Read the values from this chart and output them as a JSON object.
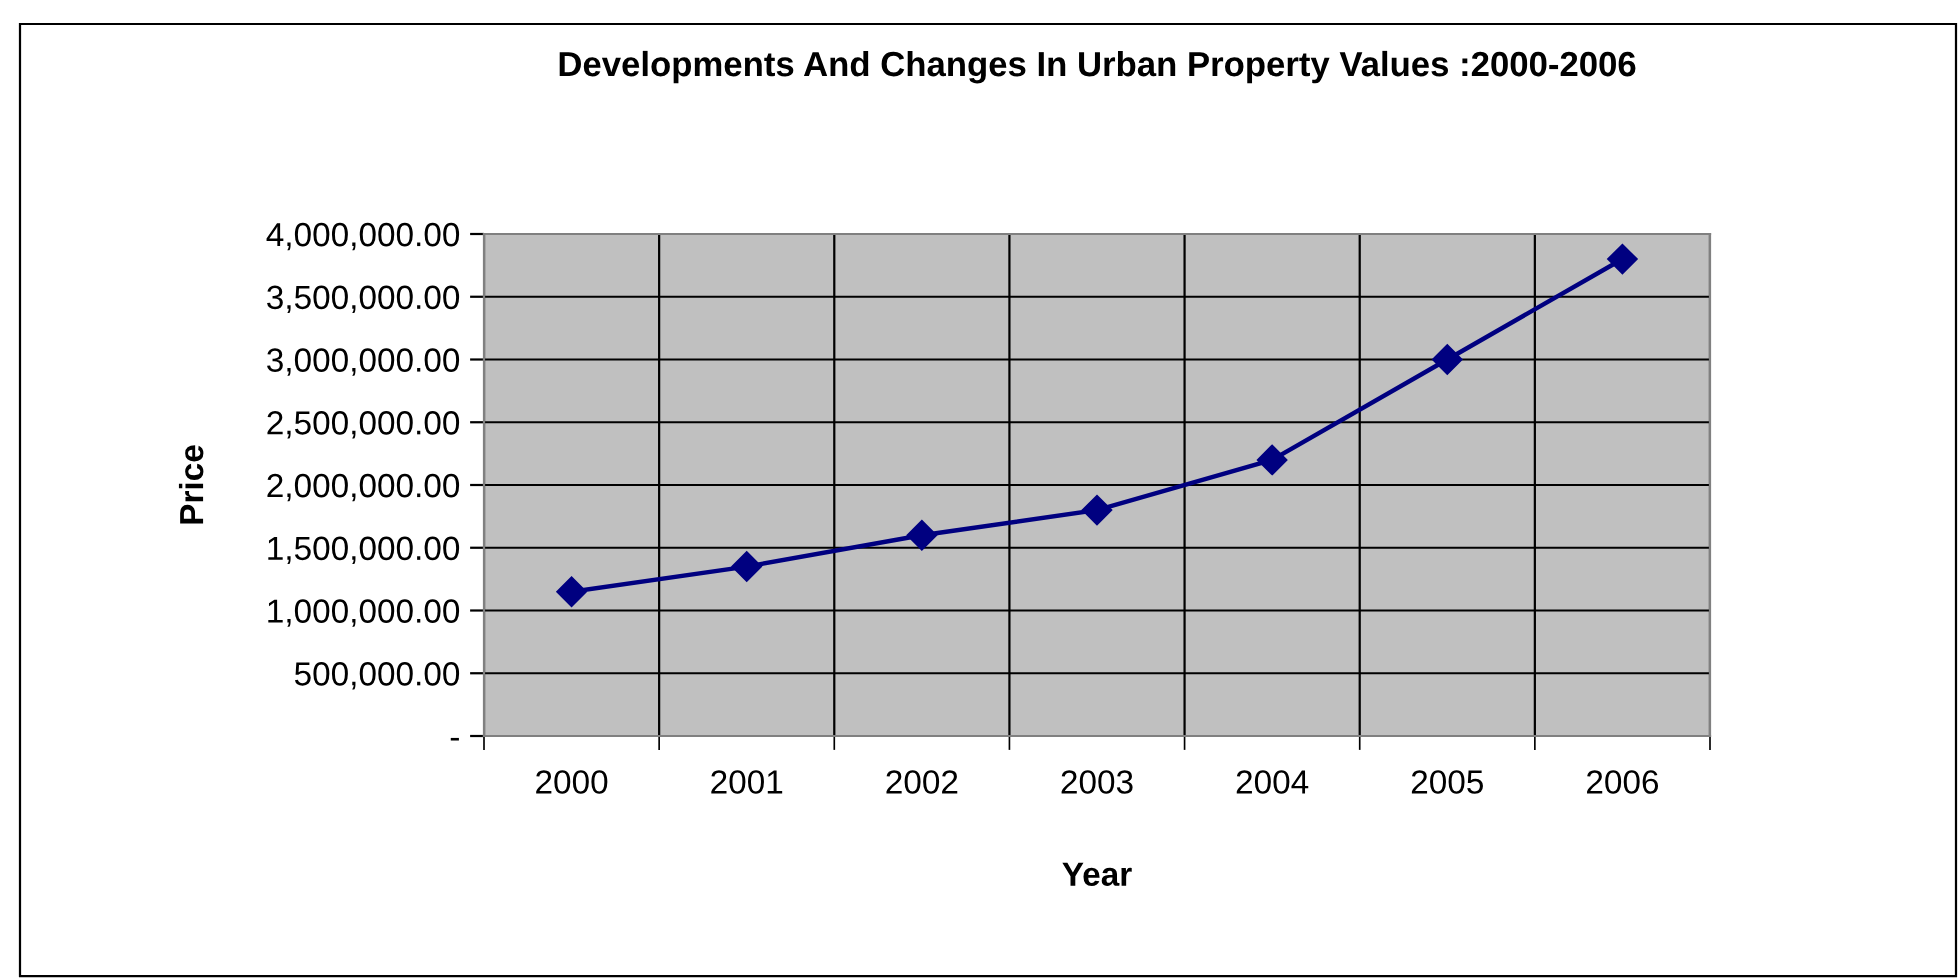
{
  "chart_data": {
    "type": "line",
    "title": "Developments And Changes In Urban Property Values :2000-2006",
    "xlabel": "Year",
    "ylabel": "Price",
    "categories": [
      "2000",
      "2001",
      "2002",
      "2003",
      "2004",
      "2005",
      "2006"
    ],
    "series": [
      {
        "color": "#000080",
        "values": [
          1150000,
          1350000,
          1600000,
          1800000,
          2200000,
          3000000,
          3800000
        ]
      }
    ],
    "ylim": [
      0,
      4000000
    ],
    "yticks": [
      {
        "value": 0,
        "label": "-"
      },
      {
        "value": 500000,
        "label": "500,000.00"
      },
      {
        "value": 1000000,
        "label": "1,000,000.00"
      },
      {
        "value": 1500000,
        "label": "1,500,000.00"
      },
      {
        "value": 2000000,
        "label": "2,000,000.00"
      },
      {
        "value": 2500000,
        "label": "2,500,000.00"
      },
      {
        "value": 3000000,
        "label": "3,000,000.00"
      },
      {
        "value": 3500000,
        "label": "3,500,000.00"
      },
      {
        "value": 4000000,
        "label": "4,000,000.00"
      }
    ],
    "grid": true,
    "marker": "diamond",
    "line_style": "solid",
    "legend": false
  }
}
